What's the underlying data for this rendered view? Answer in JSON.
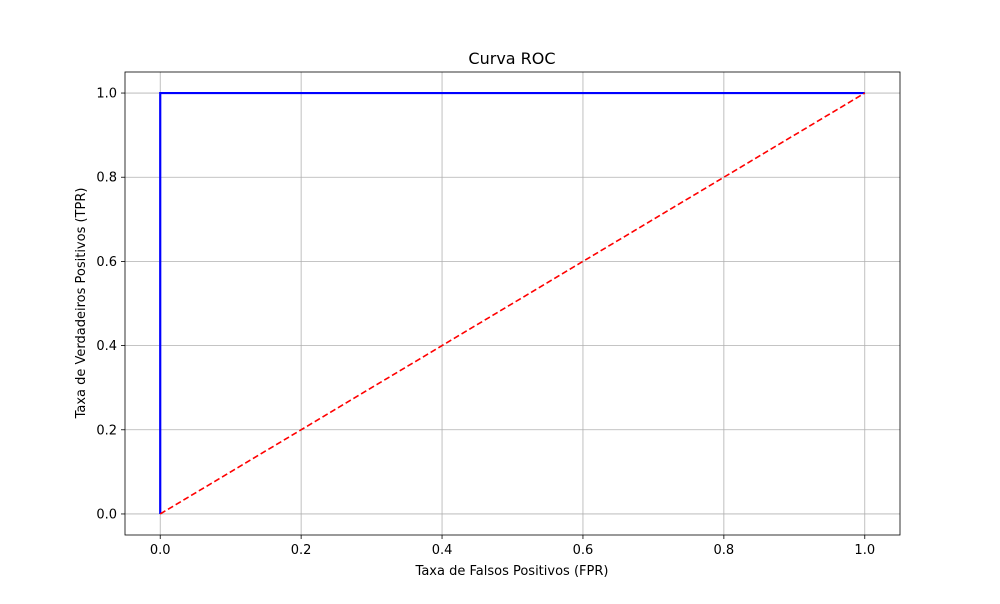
{
  "chart_data": {
    "type": "line",
    "title": "Curva ROC",
    "xlabel": "Taxa de Falsos Positivos (FPR)",
    "ylabel": "Taxa de Verdadeiros Positivos (TPR)",
    "xlim": [
      -0.05,
      1.05
    ],
    "ylim": [
      -0.05,
      1.05
    ],
    "x_ticks": [
      0.0,
      0.2,
      0.4,
      0.6,
      0.8,
      1.0
    ],
    "y_ticks": [
      0.0,
      0.2,
      0.4,
      0.6,
      0.8,
      1.0
    ],
    "x_tick_labels": [
      "0.0",
      "0.2",
      "0.4",
      "0.6",
      "0.8",
      "1.0"
    ],
    "y_tick_labels": [
      "0.0",
      "0.2",
      "0.4",
      "0.6",
      "0.8",
      "1.0"
    ],
    "grid": true,
    "legend": false,
    "series": [
      {
        "color": "#0000ff",
        "line_style": "solid",
        "x": [
          0.0,
          0.0,
          1.0
        ],
        "y": [
          0.0,
          1.0,
          1.0
        ]
      },
      {
        "color": "#ff0000",
        "line_style": "dashed",
        "x": [
          0.0,
          1.0
        ],
        "y": [
          0.0,
          1.0
        ]
      }
    ]
  }
}
